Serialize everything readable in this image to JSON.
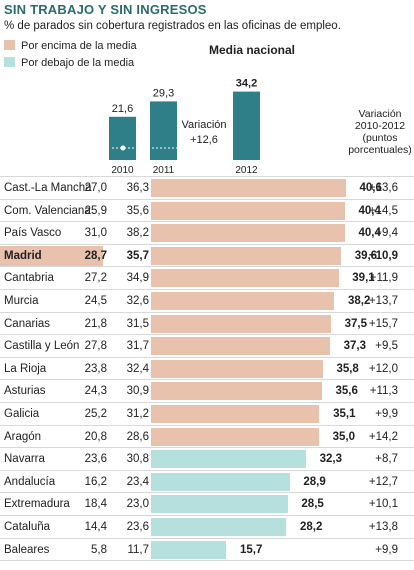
{
  "title": "SIN TRABAJO Y SIN INGRESOS",
  "subtitle": "% de parados sin cobertura registrados en las oficinas de empleo.",
  "colors": {
    "above": "#e9c2ae",
    "below": "#b5e0dd",
    "national": "#2e7f88",
    "title": "#2a6a72"
  },
  "legend": [
    {
      "label": "Por encima de la media",
      "color": "#e9c2ae"
    },
    {
      "label": "Por debajo de la media",
      "color": "#b5e0dd"
    }
  ],
  "national": {
    "title": "Media nacional",
    "years": [
      "2010",
      "2011",
      "2012"
    ],
    "values": [
      "21,6",
      "29,3",
      "34,2"
    ],
    "variation_label": "Variación",
    "variation_value": "+12,6"
  },
  "variation_header": [
    "Variación",
    "2010-2012",
    "(puntos",
    "porcentuales)"
  ],
  "chart_data": {
    "type": "bar",
    "title": "SIN TRABAJO Y SIN INGRESOS",
    "subtitle": "% de parados sin cobertura registrados en las oficinas de empleo.",
    "national_average": {
      "categories": [
        "2010",
        "2011",
        "2012"
      ],
      "values": [
        21.6,
        29.3,
        34.2
      ],
      "variation": 12.6
    },
    "categories": [
      "Cast.-La Mancha",
      "Com. Valenciana",
      "País Vasco",
      "Madrid",
      "Cantabria",
      "Murcia",
      "Canarias",
      "Castilla y León",
      "La Rioja",
      "Asturias",
      "Galicia",
      "Aragón",
      "Navarra",
      "Andalucía",
      "Extremadura",
      "Cataluña",
      "Baleares"
    ],
    "series": [
      {
        "name": "2010",
        "values": [
          27.0,
          25.9,
          31.0,
          28.7,
          27.2,
          24.5,
          21.8,
          27.8,
          23.8,
          24.3,
          25.2,
          20.8,
          23.6,
          16.2,
          18.4,
          14.4,
          5.8
        ]
      },
      {
        "name": "2011",
        "values": [
          36.3,
          35.6,
          38.2,
          35.7,
          34.9,
          32.6,
          31.5,
          31.7,
          32.4,
          30.9,
          31.2,
          28.6,
          30.8,
          23.4,
          23.0,
          23.6,
          11.7
        ]
      },
      {
        "name": "2012",
        "values": [
          40.6,
          40.4,
          40.4,
          39.6,
          39.1,
          38.2,
          37.5,
          37.3,
          35.8,
          35.6,
          35.1,
          35.0,
          32.3,
          28.9,
          28.5,
          28.2,
          15.7
        ]
      },
      {
        "name": "Variación 2010-2012 (puntos porcentuales)",
        "values": [
          13.6,
          14.5,
          9.4,
          10.9,
          11.9,
          13.7,
          15.7,
          9.5,
          12.0,
          11.3,
          9.9,
          14.2,
          8.7,
          12.7,
          10.1,
          13.8,
          9.9
        ]
      }
    ],
    "legend": [
      "Por encima de la media",
      "Por debajo de la media"
    ]
  },
  "rows": [
    {
      "region": "Cast.-La Mancha",
      "v2010": "27,0",
      "v2011": "36,3",
      "v2012": "40,6",
      "value": 40.6,
      "diff": "+13,6",
      "above": true
    },
    {
      "region": "Com. Valenciana",
      "v2010": "25,9",
      "v2011": "35,6",
      "v2012": "40,4",
      "value": 40.4,
      "diff": "+14,5",
      "above": true
    },
    {
      "region": "País Vasco",
      "v2010": "31,0",
      "v2011": "38,2",
      "v2012": "40,4",
      "value": 40.4,
      "diff": "+9,4",
      "above": true
    },
    {
      "region": "Madrid",
      "v2010": "28,7",
      "v2011": "35,7",
      "v2012": "39,6",
      "value": 39.6,
      "diff": "+10,9",
      "above": true,
      "highlight": true
    },
    {
      "region": "Cantabria",
      "v2010": "27,2",
      "v2011": "34,9",
      "v2012": "39,1",
      "value": 39.1,
      "diff": "+11,9",
      "above": true
    },
    {
      "region": "Murcia",
      "v2010": "24,5",
      "v2011": "32,6",
      "v2012": "38,2",
      "value": 38.2,
      "diff": "+13,7",
      "above": true
    },
    {
      "region": "Canarias",
      "v2010": "21,8",
      "v2011": "31,5",
      "v2012": "37,5",
      "value": 37.5,
      "diff": "+15,7",
      "above": true
    },
    {
      "region": "Castilla y León",
      "v2010": "27,8",
      "v2011": "31,7",
      "v2012": "37,3",
      "value": 37.3,
      "diff": "+9,5",
      "above": true
    },
    {
      "region": "La Rioja",
      "v2010": "23,8",
      "v2011": "32,4",
      "v2012": "35,8",
      "value": 35.8,
      "diff": "+12,0",
      "above": true
    },
    {
      "region": "Asturias",
      "v2010": "24,3",
      "v2011": "30,9",
      "v2012": "35,6",
      "value": 35.6,
      "diff": "+11,3",
      "above": true
    },
    {
      "region": "Galicia",
      "v2010": "25,2",
      "v2011": "31,2",
      "v2012": "35,1",
      "value": 35.1,
      "diff": "+9,9",
      "above": true
    },
    {
      "region": "Aragón",
      "v2010": "20,8",
      "v2011": "28,6",
      "v2012": "35,0",
      "value": 35.0,
      "diff": "+14,2",
      "above": true
    },
    {
      "region": "Navarra",
      "v2010": "23,6",
      "v2011": "30,8",
      "v2012": "32,3",
      "value": 32.3,
      "diff": "+8,7",
      "above": false
    },
    {
      "region": "Andalucía",
      "v2010": "16,2",
      "v2011": "23,4",
      "v2012": "28,9",
      "value": 28.9,
      "diff": "+12,7",
      "above": false
    },
    {
      "region": "Extremadura",
      "v2010": "18,4",
      "v2011": "23,0",
      "v2012": "28,5",
      "value": 28.5,
      "diff": "+10,1",
      "above": false
    },
    {
      "region": "Cataluña",
      "v2010": "14,4",
      "v2011": "23,6",
      "v2012": "28,2",
      "value": 28.2,
      "diff": "+13,8",
      "above": false
    },
    {
      "region": "Baleares",
      "v2010": "5,8",
      "v2011": "11,7",
      "v2012": "15,7",
      "value": 15.7,
      "diff": "+9,9",
      "above": false
    }
  ]
}
